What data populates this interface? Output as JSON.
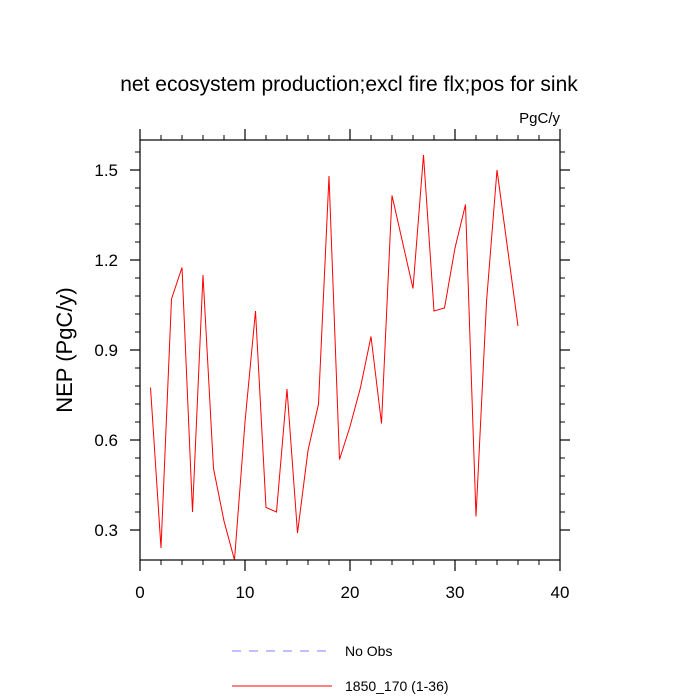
{
  "chart_data": {
    "type": "line",
    "title": "net ecosystem production;excl fire flx;pos for sink",
    "units": "PgC/y",
    "xlabel": "",
    "ylabel": "NEP  (PgC/y)",
    "xlim": [
      0,
      40
    ],
    "ylim": [
      0.2,
      1.6
    ],
    "xticks": [
      0,
      10,
      20,
      30,
      40
    ],
    "yticks": [
      0.3,
      0.6,
      0.9,
      1.2,
      1.5
    ],
    "xtick_labels": [
      "0",
      "10",
      "20",
      "30",
      "40"
    ],
    "ytick_labels": [
      "0.3",
      "0.6",
      "0.9",
      "1.2",
      "1.5"
    ],
    "grid": false,
    "legend_position": "bottom",
    "series": [
      {
        "name": "1850_170 (1-36)",
        "color": "#ff0000",
        "style": "solid",
        "x": [
          1,
          2,
          3,
          4,
          5,
          6,
          7,
          8,
          9,
          10,
          11,
          12,
          13,
          14,
          15,
          16,
          17,
          18,
          19,
          20,
          21,
          22,
          23,
          24,
          25,
          26,
          27,
          28,
          29,
          30,
          31,
          32,
          33,
          34,
          35,
          36
        ],
        "values": [
          0.775,
          0.24,
          1.07,
          1.175,
          0.36,
          1.15,
          0.505,
          0.33,
          0.2,
          0.66,
          1.03,
          0.375,
          0.36,
          0.77,
          0.29,
          0.565,
          0.72,
          1.48,
          0.535,
          0.645,
          0.775,
          0.945,
          0.655,
          1.415,
          1.26,
          1.105,
          1.55,
          1.03,
          1.04,
          1.24,
          1.385,
          0.345,
          1.06,
          1.5,
          1.24,
          0.98
        ]
      }
    ],
    "legend": [
      {
        "label": "No Obs",
        "color": "#8080ff",
        "style": "dashed"
      },
      {
        "label": "1850_170 (1-36)",
        "color": "#ff0000",
        "style": "solid"
      }
    ]
  }
}
